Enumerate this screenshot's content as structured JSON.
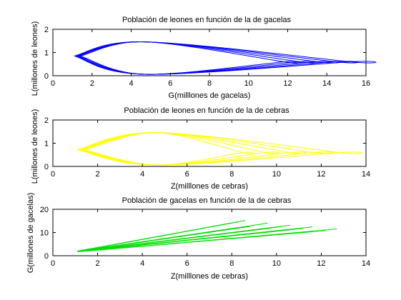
{
  "chart_data": [
    {
      "type": "line",
      "title": "Población de leones en función de la de gacelas",
      "xlabel": "G(milllones de gacelas)",
      "ylabel": "L(millones de leones)",
      "xlim": [
        0,
        16
      ],
      "ylim": [
        0,
        2
      ],
      "xticks": [
        "0",
        "2",
        "4",
        "6",
        "8",
        "10",
        "12",
        "14",
        "16"
      ],
      "yticks": [
        "0",
        "1",
        "2"
      ],
      "grid": false,
      "color": "#0000ff",
      "series": [
        {
          "x": [
            1.4,
            4.7,
            11.8,
            11.8,
            4.7,
            1.4
          ],
          "y": [
            0.85,
            1.46,
            0.6,
            0.6,
            0.06,
            0.85
          ]
        },
        {
          "x": [
            1.3,
            4.7,
            12.6,
            12.6,
            4.7,
            1.3
          ],
          "y": [
            0.85,
            1.46,
            0.6,
            0.6,
            0.06,
            0.85
          ]
        },
        {
          "x": [
            1.2,
            4.7,
            13.5,
            13.5,
            4.7,
            1.2
          ],
          "y": [
            0.85,
            1.46,
            0.6,
            0.6,
            0.06,
            0.85
          ]
        },
        {
          "x": [
            1.15,
            4.7,
            14.4,
            14.4,
            4.7,
            1.15
          ],
          "y": [
            0.85,
            1.46,
            0.6,
            0.6,
            0.06,
            0.85
          ]
        },
        {
          "x": [
            1.1,
            4.7,
            15.2,
            15.2,
            4.7,
            1.1
          ],
          "y": [
            0.85,
            1.46,
            0.6,
            0.6,
            0.06,
            0.85
          ]
        }
      ]
    },
    {
      "type": "line",
      "title": "Población de leones en función de la de cebras",
      "xlabel": "Z(milllones de cebras)",
      "ylabel": "L(millones de leones)",
      "xlim": [
        0,
        14
      ],
      "ylim": [
        0,
        2
      ],
      "xticks": [
        "0",
        "2",
        "4",
        "6",
        "8",
        "10",
        "12",
        "14"
      ],
      "yticks": [
        "0",
        "1",
        "2"
      ],
      "grid": false,
      "color": "#ffff00",
      "series": [
        {
          "x": [
            1.4,
            4.6,
            8.5,
            8.5,
            4.6,
            1.4
          ],
          "y": [
            0.72,
            1.46,
            0.6,
            0.6,
            0.06,
            0.72
          ]
        },
        {
          "x": [
            1.3,
            4.6,
            9.5,
            9.5,
            4.6,
            1.3
          ],
          "y": [
            0.72,
            1.46,
            0.6,
            0.6,
            0.06,
            0.72
          ]
        },
        {
          "x": [
            1.2,
            4.6,
            10.6,
            10.6,
            4.6,
            1.2
          ],
          "y": [
            0.72,
            1.46,
            0.6,
            0.6,
            0.06,
            0.72
          ]
        },
        {
          "x": [
            1.15,
            4.6,
            11.7,
            11.7,
            4.6,
            1.15
          ],
          "y": [
            0.72,
            1.46,
            0.6,
            0.6,
            0.06,
            0.72
          ]
        },
        {
          "x": [
            1.1,
            4.6,
            12.8,
            12.8,
            4.6,
            1.1
          ],
          "y": [
            0.72,
            1.46,
            0.6,
            0.6,
            0.06,
            0.72
          ]
        }
      ]
    },
    {
      "type": "line",
      "title": "Población de gacelas en función de la de cebras",
      "xlabel": "Z(milllones de cebras)",
      "ylabel": "G(millones de gacelas)",
      "xlim": [
        0,
        14
      ],
      "ylim": [
        0,
        20
      ],
      "xticks": [
        "0",
        "2",
        "4",
        "6",
        "8",
        "10",
        "12",
        "14"
      ],
      "yticks": [
        "0",
        "10",
        "20"
      ],
      "grid": false,
      "color": "#00dd00",
      "series": [
        {
          "x": [
            1.1,
            8.6,
            1.3,
            8.3,
            1.6,
            7.8
          ],
          "y": [
            2.0,
            15.2,
            2.3,
            14.6,
            2.7,
            13.8
          ]
        },
        {
          "x": [
            1.1,
            9.6,
            1.4,
            9.2,
            1.7,
            8.8
          ],
          "y": [
            1.9,
            14.0,
            2.2,
            13.4,
            2.6,
            12.6
          ]
        },
        {
          "x": [
            1.1,
            10.6,
            1.4,
            10.2,
            1.8,
            9.7
          ],
          "y": [
            1.8,
            13.1,
            2.1,
            12.5,
            2.5,
            11.8
          ]
        },
        {
          "x": [
            1.1,
            11.6,
            1.5,
            11.2,
            1.9,
            10.6
          ],
          "y": [
            1.8,
            12.4,
            2.1,
            11.8,
            2.5,
            11.1
          ]
        },
        {
          "x": [
            1.1,
            12.7,
            1.5,
            12.2,
            2.0,
            11.6
          ],
          "y": [
            1.7,
            11.5,
            2.0,
            10.9,
            2.4,
            10.3
          ]
        }
      ]
    }
  ]
}
